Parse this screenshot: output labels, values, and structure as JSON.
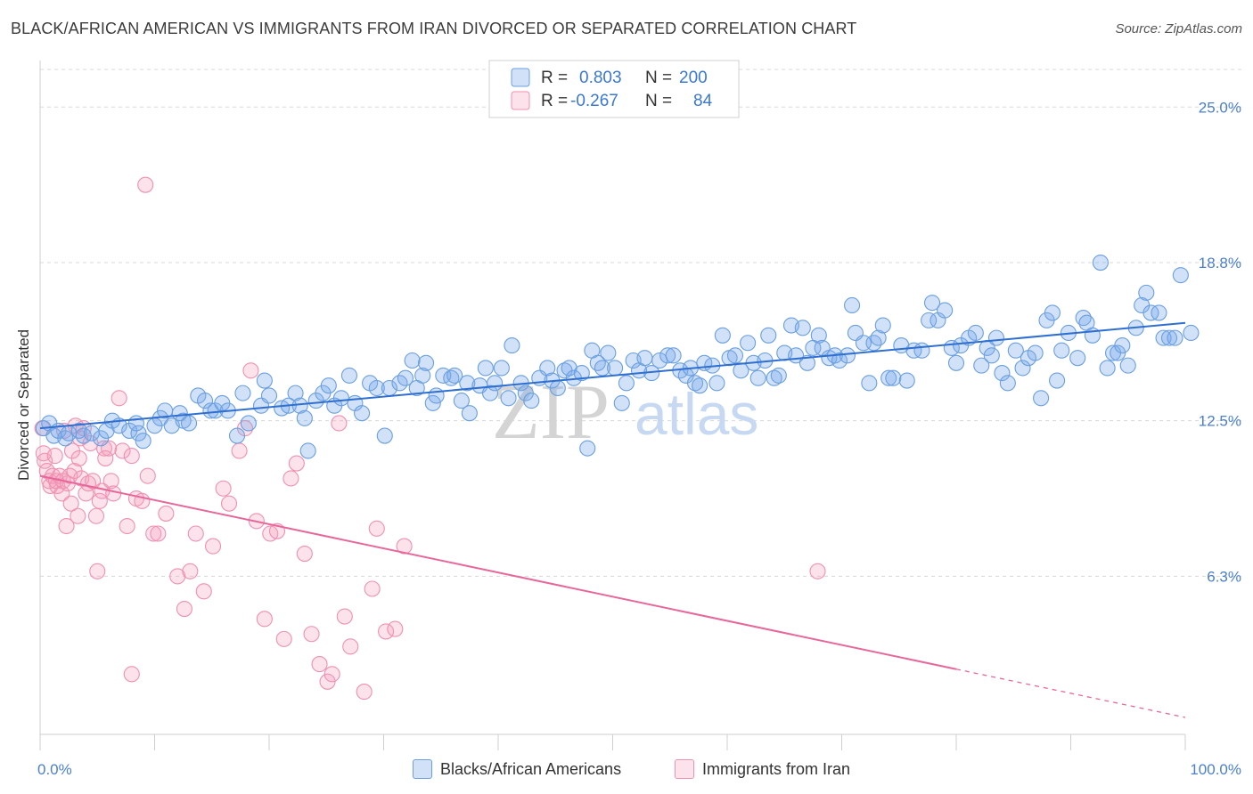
{
  "title": "BLACK/AFRICAN AMERICAN VS IMMIGRANTS FROM IRAN DIVORCED OR SEPARATED CORRELATION CHART",
  "source": "Source: ZipAtlas.com",
  "watermark": {
    "zip": "ZIP",
    "atlas": "atlas"
  },
  "colors": {
    "blue": "#6a9fe0",
    "blue_fill": "rgba(120,170,235,0.35)",
    "blue_line": "#2e6fd1",
    "pink": "#f090b0",
    "pink_fill": "rgba(245,160,190,0.30)",
    "pink_line": "#e8679a",
    "axis_text": "#4a7fd0",
    "grid": "#d8d8d8"
  },
  "legend_top": {
    "rows": [
      {
        "r_label": "R =",
        "r_value": "0.803",
        "n_label": "N =",
        "n_value": "200",
        "color": "blue"
      },
      {
        "r_label": "R =",
        "r_value": "-0.267",
        "n_label": "N =",
        "n_value": "84",
        "color": "pink"
      }
    ]
  },
  "legend_bottom": [
    {
      "label": "Blacks/African Americans",
      "color": "blue"
    },
    {
      "label": "Immigrants from Iran",
      "color": "pink"
    }
  ],
  "chart_data": {
    "type": "scatter",
    "title": "BLACK/AFRICAN AMERICAN VS IMMIGRANTS FROM IRAN DIVORCED OR SEPARATED CORRELATION CHART",
    "xlabel": "",
    "ylabel": "Divorced or Separated",
    "xlim": [
      0,
      100
    ],
    "ylim": [
      0,
      26.5
    ],
    "x_tick_labels": [
      {
        "value": 0,
        "label": "0.0%"
      },
      {
        "value": 100,
        "label": "100.0%"
      }
    ],
    "y_tick_labels": [
      {
        "value": 6.3,
        "label": "6.3%"
      },
      {
        "value": 12.5,
        "label": "12.5%"
      },
      {
        "value": 18.8,
        "label": "18.8%"
      },
      {
        "value": 25.0,
        "label": "25.0%"
      }
    ],
    "grid": true,
    "legend_position": "top-center",
    "series": [
      {
        "name": "Blacks/African Americans",
        "color": "blue",
        "trend": {
          "x": [
            0,
            100
          ],
          "y": [
            12.2,
            16.4
          ]
        },
        "points": [
          [
            0.3,
            12.2
          ],
          [
            0.8,
            12.4
          ],
          [
            1.2,
            11.9
          ],
          [
            1.6,
            12.1
          ],
          [
            2.2,
            11.8
          ],
          [
            2.5,
            12.0
          ],
          [
            3.4,
            12.1
          ],
          [
            3.8,
            11.9
          ],
          [
            4.5,
            12.0
          ],
          [
            5.3,
            11.8
          ],
          [
            5.8,
            12.1
          ],
          [
            6.3,
            12.5
          ],
          [
            6.9,
            12.3
          ],
          [
            7.8,
            12.1
          ],
          [
            8.6,
            12.0
          ],
          [
            8.4,
            12.4
          ],
          [
            9.0,
            11.7
          ],
          [
            10.0,
            12.3
          ],
          [
            10.5,
            12.6
          ],
          [
            10.9,
            12.9
          ],
          [
            11.5,
            12.3
          ],
          [
            12.2,
            12.8
          ],
          [
            12.5,
            12.5
          ],
          [
            13.0,
            12.4
          ],
          [
            13.8,
            13.5
          ],
          [
            14.4,
            13.3
          ],
          [
            14.9,
            12.9
          ],
          [
            15.3,
            12.9
          ],
          [
            15.9,
            13.2
          ],
          [
            16.4,
            12.9
          ],
          [
            17.2,
            11.9
          ],
          [
            17.7,
            13.6
          ],
          [
            18.2,
            12.4
          ],
          [
            19.3,
            13.1
          ],
          [
            19.6,
            14.1
          ],
          [
            20.0,
            13.5
          ],
          [
            21.1,
            13.0
          ],
          [
            21.7,
            13.1
          ],
          [
            22.3,
            13.6
          ],
          [
            22.7,
            13.1
          ],
          [
            23.1,
            12.6
          ],
          [
            23.4,
            11.3
          ],
          [
            24.1,
            13.3
          ],
          [
            24.7,
            13.6
          ],
          [
            25.2,
            13.9
          ],
          [
            25.7,
            13.1
          ],
          [
            26.3,
            13.4
          ],
          [
            27.0,
            14.3
          ],
          [
            27.5,
            13.2
          ],
          [
            28.1,
            12.8
          ],
          [
            28.8,
            14.0
          ],
          [
            29.4,
            13.8
          ],
          [
            30.1,
            11.9
          ],
          [
            30.5,
            13.8
          ],
          [
            31.4,
            14.0
          ],
          [
            31.9,
            14.2
          ],
          [
            32.5,
            14.9
          ],
          [
            32.9,
            13.8
          ],
          [
            33.4,
            14.3
          ],
          [
            33.7,
            14.8
          ],
          [
            34.3,
            13.2
          ],
          [
            34.6,
            13.5
          ],
          [
            35.2,
            14.3
          ],
          [
            35.9,
            14.2
          ],
          [
            36.2,
            14.3
          ],
          [
            36.8,
            13.3
          ],
          [
            37.5,
            12.8
          ],
          [
            37.3,
            14.0
          ],
          [
            38.4,
            13.9
          ],
          [
            38.9,
            14.6
          ],
          [
            39.3,
            13.6
          ],
          [
            39.7,
            14.0
          ],
          [
            40.3,
            14.6
          ],
          [
            40.9,
            13.4
          ],
          [
            41.2,
            15.5
          ],
          [
            42.0,
            14.0
          ],
          [
            42.4,
            13.6
          ],
          [
            42.9,
            13.3
          ],
          [
            43.6,
            14.2
          ],
          [
            44.3,
            14.6
          ],
          [
            44.7,
            14.1
          ],
          [
            45.2,
            13.8
          ],
          [
            45.8,
            14.5
          ],
          [
            46.2,
            14.6
          ],
          [
            46.6,
            14.2
          ],
          [
            47.3,
            14.4
          ],
          [
            47.8,
            11.4
          ],
          [
            48.2,
            15.3
          ],
          [
            48.7,
            14.8
          ],
          [
            49.1,
            14.6
          ],
          [
            49.6,
            15.2
          ],
          [
            50.2,
            14.6
          ],
          [
            50.8,
            13.2
          ],
          [
            51.2,
            14.0
          ],
          [
            51.8,
            14.9
          ],
          [
            52.3,
            14.5
          ],
          [
            52.8,
            15.0
          ],
          [
            53.4,
            14.4
          ],
          [
            54.1,
            14.9
          ],
          [
            54.8,
            15.1
          ],
          [
            55.3,
            15.1
          ],
          [
            55.9,
            14.5
          ],
          [
            56.4,
            14.3
          ],
          [
            56.8,
            14.6
          ],
          [
            57.2,
            14.0
          ],
          [
            57.6,
            13.9
          ],
          [
            58.0,
            14.8
          ],
          [
            58.7,
            14.7
          ],
          [
            59.1,
            14.0
          ],
          [
            59.6,
            15.9
          ],
          [
            60.2,
            15.0
          ],
          [
            60.7,
            15.1
          ],
          [
            61.2,
            14.5
          ],
          [
            61.8,
            15.6
          ],
          [
            62.3,
            14.8
          ],
          [
            62.7,
            14.2
          ],
          [
            63.3,
            14.9
          ],
          [
            63.6,
            15.9
          ],
          [
            64.1,
            14.2
          ],
          [
            64.5,
            14.3
          ],
          [
            65.0,
            15.2
          ],
          [
            65.6,
            16.3
          ],
          [
            66.0,
            15.1
          ],
          [
            66.6,
            16.2
          ],
          [
            67.0,
            14.8
          ],
          [
            67.5,
            15.4
          ],
          [
            68.0,
            15.9
          ],
          [
            68.3,
            15.4
          ],
          [
            68.9,
            15.0
          ],
          [
            69.4,
            15.1
          ],
          [
            69.8,
            14.9
          ],
          [
            70.5,
            15.1
          ],
          [
            70.9,
            17.1
          ],
          [
            71.2,
            16.0
          ],
          [
            71.9,
            15.6
          ],
          [
            72.4,
            14.0
          ],
          [
            72.8,
            15.6
          ],
          [
            73.2,
            15.8
          ],
          [
            73.6,
            16.3
          ],
          [
            74.1,
            14.2
          ],
          [
            74.5,
            14.2
          ],
          [
            75.2,
            15.5
          ],
          [
            75.7,
            14.1
          ],
          [
            76.3,
            15.3
          ],
          [
            77.0,
            15.3
          ],
          [
            77.6,
            16.5
          ],
          [
            77.9,
            17.2
          ],
          [
            78.4,
            16.5
          ],
          [
            79.0,
            16.9
          ],
          [
            79.6,
            15.4
          ],
          [
            80.0,
            14.8
          ],
          [
            80.4,
            15.5
          ],
          [
            81.1,
            15.8
          ],
          [
            81.7,
            16.0
          ],
          [
            82.2,
            14.7
          ],
          [
            82.7,
            15.4
          ],
          [
            83.1,
            15.1
          ],
          [
            83.5,
            15.8
          ],
          [
            84.0,
            14.4
          ],
          [
            84.5,
            14.0
          ],
          [
            85.2,
            15.3
          ],
          [
            85.8,
            14.6
          ],
          [
            86.3,
            15.0
          ],
          [
            86.9,
            15.2
          ],
          [
            87.4,
            13.4
          ],
          [
            87.9,
            16.5
          ],
          [
            88.4,
            16.8
          ],
          [
            88.8,
            14.1
          ],
          [
            89.2,
            15.3
          ],
          [
            89.8,
            16.0
          ],
          [
            90.6,
            15.0
          ],
          [
            91.1,
            16.6
          ],
          [
            91.4,
            16.4
          ],
          [
            91.9,
            15.9
          ],
          [
            92.6,
            18.8
          ],
          [
            93.2,
            14.6
          ],
          [
            93.7,
            15.2
          ],
          [
            94.1,
            15.2
          ],
          [
            94.5,
            15.5
          ],
          [
            95.0,
            14.7
          ],
          [
            95.7,
            16.2
          ],
          [
            96.2,
            17.1
          ],
          [
            96.6,
            17.6
          ],
          [
            97.0,
            16.8
          ],
          [
            97.7,
            16.8
          ],
          [
            98.1,
            15.8
          ],
          [
            98.6,
            15.8
          ],
          [
            99.1,
            15.8
          ],
          [
            99.6,
            18.3
          ],
          [
            100.5,
            16.0
          ]
        ]
      },
      {
        "name": "Immigrants from Iran",
        "color": "pink",
        "trend": {
          "x": [
            0,
            80
          ],
          "y": [
            10.3,
            2.6
          ]
        },
        "points": [
          [
            0.2,
            12.2
          ],
          [
            0.3,
            11.2
          ],
          [
            0.4,
            10.9
          ],
          [
            0.6,
            10.5
          ],
          [
            0.8,
            10.1
          ],
          [
            0.9,
            9.9
          ],
          [
            1.1,
            10.3
          ],
          [
            1.3,
            11.1
          ],
          [
            1.4,
            10.1
          ],
          [
            1.5,
            9.9
          ],
          [
            1.7,
            10.3
          ],
          [
            1.9,
            9.6
          ],
          [
            2.0,
            10.1
          ],
          [
            2.1,
            12.1
          ],
          [
            2.3,
            8.3
          ],
          [
            2.4,
            10.0
          ],
          [
            2.6,
            10.3
          ],
          [
            2.7,
            9.2
          ],
          [
            2.8,
            11.3
          ],
          [
            3.0,
            10.5
          ],
          [
            3.1,
            12.3
          ],
          [
            3.3,
            8.7
          ],
          [
            3.4,
            11.0
          ],
          [
            3.5,
            11.8
          ],
          [
            3.6,
            10.2
          ],
          [
            3.8,
            12.2
          ],
          [
            4.0,
            9.6
          ],
          [
            4.2,
            10.0
          ],
          [
            4.4,
            11.6
          ],
          [
            4.6,
            10.1
          ],
          [
            4.9,
            8.7
          ],
          [
            5.2,
            9.3
          ],
          [
            5.4,
            9.7
          ],
          [
            5.6,
            11.4
          ],
          [
            5.7,
            11.0
          ],
          [
            6.0,
            11.4
          ],
          [
            6.2,
            10.1
          ],
          [
            6.4,
            9.6
          ],
          [
            6.9,
            13.4
          ],
          [
            7.2,
            11.3
          ],
          [
            7.6,
            8.3
          ],
          [
            8.0,
            11.1
          ],
          [
            8.4,
            9.4
          ],
          [
            8.9,
            9.3
          ],
          [
            9.4,
            10.3
          ],
          [
            9.9,
            8.0
          ],
          [
            10.3,
            8.0
          ],
          [
            11.0,
            8.8
          ],
          [
            12.0,
            6.3
          ],
          [
            12.6,
            5.0
          ],
          [
            13.1,
            6.5
          ],
          [
            13.6,
            8.0
          ],
          [
            14.3,
            5.7
          ],
          [
            15.1,
            7.5
          ],
          [
            16.0,
            9.8
          ],
          [
            16.5,
            9.2
          ],
          [
            17.4,
            11.3
          ],
          [
            17.9,
            12.2
          ],
          [
            18.4,
            14.5
          ],
          [
            18.9,
            8.5
          ],
          [
            19.6,
            4.6
          ],
          [
            20.1,
            8.0
          ],
          [
            20.7,
            8.1
          ],
          [
            21.3,
            3.8
          ],
          [
            21.9,
            10.2
          ],
          [
            22.4,
            10.8
          ],
          [
            23.1,
            7.2
          ],
          [
            23.7,
            4.0
          ],
          [
            24.4,
            2.8
          ],
          [
            25.1,
            2.1
          ],
          [
            25.5,
            2.4
          ],
          [
            26.1,
            12.4
          ],
          [
            26.6,
            4.7
          ],
          [
            27.1,
            3.5
          ],
          [
            28.3,
            1.7
          ],
          [
            29.0,
            5.8
          ],
          [
            29.4,
            8.2
          ],
          [
            30.2,
            4.1
          ],
          [
            31.0,
            4.2
          ],
          [
            31.8,
            7.5
          ],
          [
            5.0,
            6.5
          ],
          [
            8.0,
            2.4
          ],
          [
            9.2,
            21.9
          ],
          [
            67.9,
            6.5
          ]
        ]
      }
    ]
  }
}
